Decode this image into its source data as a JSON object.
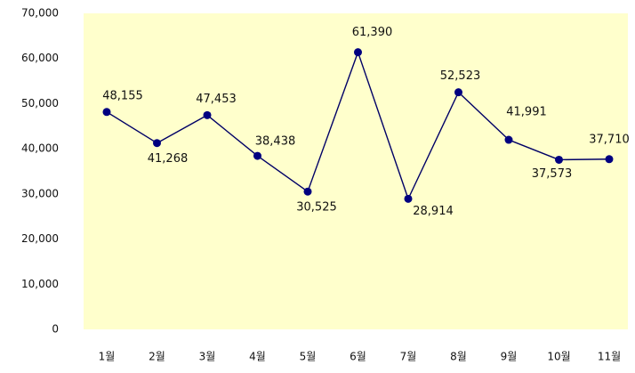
{
  "chart_data": {
    "type": "line",
    "title": "",
    "xlabel": "",
    "ylabel": "",
    "categories": [
      "1월",
      "2월",
      "3월",
      "4월",
      "5월",
      "6월",
      "7월",
      "8월",
      "9월",
      "10월",
      "11월"
    ],
    "series": [
      {
        "values": [
          48155,
          41268,
          47453,
          38438,
          30525,
          61390,
          28914,
          52523,
          41991,
          37573,
          37710
        ]
      }
    ],
    "data_labels": [
      "48,155",
      "41,268",
      "47,453",
      "38,438",
      "30,525",
      "61,390",
      "28,914",
      "52,523",
      "41,991",
      "37,573",
      "37,710"
    ],
    "y_ticks": [
      "0",
      "10,000",
      "20,000",
      "30,000",
      "40,000",
      "50,000",
      "60,000",
      "70,000"
    ],
    "ylim": [
      0,
      70000
    ],
    "grid": false,
    "legend": "none",
    "colors": {
      "plot_background": "#FFFFCC",
      "line": "#000066",
      "marker": "#000080",
      "text": "#111111"
    }
  }
}
